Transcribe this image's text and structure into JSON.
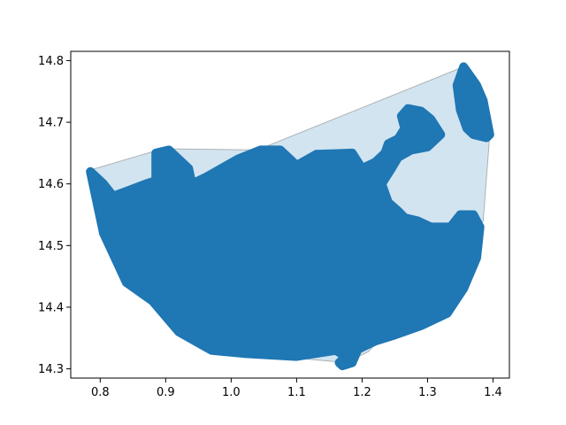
{
  "chart_data": {
    "type": "scatter",
    "title": "",
    "xlabel": "",
    "ylabel": "",
    "xlim": [
      0.755,
      1.425
    ],
    "ylim": [
      14.285,
      14.815
    ],
    "xticks": [
      0.8,
      0.9,
      1.0,
      1.1,
      1.2,
      1.3,
      1.4
    ],
    "xtick_labels": [
      "0.8",
      "0.9",
      "1.0",
      "1.1",
      "1.2",
      "1.3",
      "1.4"
    ],
    "yticks": [
      14.3,
      14.4,
      14.5,
      14.6,
      14.7,
      14.8
    ],
    "ytick_labels": [
      "14.3",
      "14.4",
      "14.5",
      "14.6",
      "14.7",
      "14.8"
    ],
    "grid": false,
    "colors": {
      "points": "#1f77b4",
      "hull_fill": "#1f77b4",
      "hull_edge": "#888888"
    },
    "hull": {
      "fill_alpha": 0.2,
      "x": [
        0.783,
        0.895,
        1.04,
        1.355,
        1.395,
        1.385,
        1.21,
        1.175,
        1.02,
        0.88,
        0.783
      ],
      "y": [
        14.622,
        14.657,
        14.655,
        14.79,
        14.68,
        14.54,
        14.328,
        14.31,
        14.325,
        14.43,
        14.622
      ]
    },
    "point_regions": [
      {
        "x": [
          0.785,
          0.805,
          0.82,
          0.845,
          0.87,
          0.885,
          0.885,
          0.905,
          0.935,
          0.94,
          0.96,
          1.01,
          1.045,
          1.075,
          1.1,
          1.13,
          1.185,
          1.2,
          1.22,
          1.235,
          1.24,
          1.255,
          1.265,
          1.26,
          1.27,
          1.29,
          1.305,
          1.32,
          1.3,
          1.275,
          1.255,
          1.245,
          1.23,
          1.24,
          1.255,
          1.265,
          1.285,
          1.305,
          1.335,
          1.35,
          1.37,
          1.38,
          1.375,
          1.355,
          1.33,
          1.29,
          1.25,
          1.22,
          1.2,
          1.175,
          1.16,
          1.1,
          1.02,
          0.97,
          0.92,
          0.88,
          0.84,
          0.805,
          0.785
        ],
        "y": [
          14.62,
          14.6,
          14.58,
          14.59,
          14.6,
          14.605,
          14.65,
          14.655,
          14.625,
          14.6,
          14.61,
          14.64,
          14.655,
          14.655,
          14.63,
          14.648,
          14.65,
          14.625,
          14.635,
          14.65,
          14.665,
          14.673,
          14.69,
          14.71,
          14.722,
          14.718,
          14.705,
          14.68,
          14.66,
          14.655,
          14.643,
          14.625,
          14.6,
          14.57,
          14.556,
          14.545,
          14.54,
          14.53,
          14.53,
          14.55,
          14.55,
          14.53,
          14.48,
          14.43,
          14.39,
          14.37,
          14.355,
          14.345,
          14.335,
          14.32,
          14.33,
          14.32,
          14.325,
          14.33,
          14.36,
          14.41,
          14.44,
          14.52,
          14.62
        ]
      },
      {
        "x": [
          1.345,
          1.355,
          1.375,
          1.385,
          1.395,
          1.39,
          1.37,
          1.36,
          1.35,
          1.345
        ],
        "y": [
          14.76,
          14.79,
          14.76,
          14.735,
          14.68,
          14.675,
          14.68,
          14.69,
          14.72,
          14.76
        ]
      },
      {
        "x": [
          1.165,
          1.18,
          1.195,
          1.185,
          1.17,
          1.165
        ],
        "y": [
          14.31,
          14.325,
          14.335,
          14.31,
          14.305,
          14.31
        ]
      }
    ]
  }
}
